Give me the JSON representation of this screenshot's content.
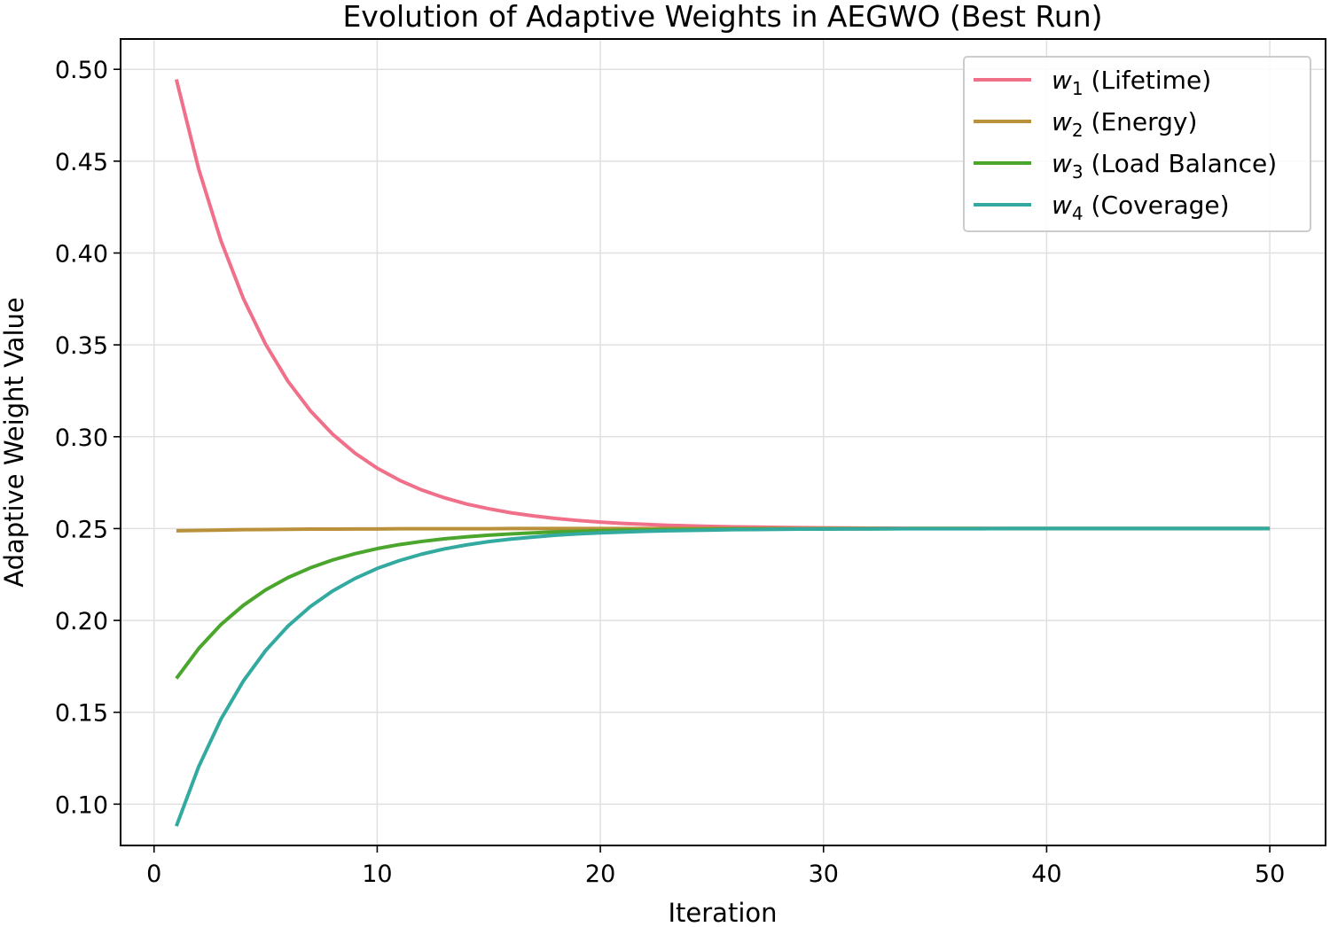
{
  "chart_data": {
    "type": "line",
    "title": "Evolution of Adaptive Weights in AEGWO (Best Run)",
    "xlabel": "Iteration",
    "ylabel": "Adaptive Weight Value",
    "xlim": [
      -1.5,
      52.5
    ],
    "ylim": [
      0.0775,
      0.5165
    ],
    "xticks": [
      0,
      10,
      20,
      30,
      40,
      50
    ],
    "xtick_labels": [
      "0",
      "10",
      "20",
      "30",
      "40",
      "50"
    ],
    "yticks": [
      0.1,
      0.15,
      0.2,
      0.25,
      0.3,
      0.35,
      0.4,
      0.45,
      0.5
    ],
    "ytick_labels": [
      "0.10",
      "0.15",
      "0.20",
      "0.25",
      "0.30",
      "0.35",
      "0.40",
      "0.45",
      "0.50"
    ],
    "grid": true,
    "legend_position": "top-right",
    "x_start": 1,
    "x_end": 50,
    "x_step": 1,
    "series": [
      {
        "name": "w1 (Lifetime)",
        "symbol": "w",
        "subscript": "1",
        "legend_label": "(Lifetime)",
        "color": "#f0708a",
        "values": [
          0.4945,
          0.4457,
          0.4066,
          0.3753,
          0.3503,
          0.3302,
          0.3142,
          0.3014,
          0.2911,
          0.2829,
          0.2763,
          0.271,
          0.2668,
          0.2634,
          0.2608,
          0.2586,
          0.2569,
          0.2555,
          0.2544,
          0.2535,
          0.2528,
          0.2523,
          0.2518,
          0.2515,
          0.2512,
          0.2509,
          0.2508,
          0.2506,
          0.2505,
          0.2504,
          0.2503,
          0.2502,
          0.2502,
          0.2501,
          0.2501,
          0.2501,
          0.2501,
          0.25,
          0.25,
          0.25,
          0.25,
          0.25,
          0.25,
          0.25,
          0.25,
          0.25,
          0.25,
          0.25,
          0.25,
          0.25
        ]
      },
      {
        "name": "w2 (Energy)",
        "symbol": "w",
        "subscript": "2",
        "legend_label": "(Energy)",
        "color": "#b9913a",
        "values": [
          0.2488,
          0.249,
          0.2492,
          0.2494,
          0.2495,
          0.2496,
          0.2497,
          0.2497,
          0.2498,
          0.2498,
          0.2499,
          0.2499,
          0.2499,
          0.2499,
          0.2499,
          0.25,
          0.25,
          0.25,
          0.25,
          0.25,
          0.25,
          0.25,
          0.25,
          0.25,
          0.25,
          0.25,
          0.25,
          0.25,
          0.25,
          0.25,
          0.25,
          0.25,
          0.25,
          0.25,
          0.25,
          0.25,
          0.25,
          0.25,
          0.25,
          0.25,
          0.25,
          0.25,
          0.25,
          0.25,
          0.25,
          0.25,
          0.25,
          0.25,
          0.25,
          0.25
        ]
      },
      {
        "name": "w3 (Load Balance)",
        "symbol": "w",
        "subscript": "3",
        "legend_label": "(Load Balance)",
        "color": "#4aa62d",
        "values": [
          0.1684,
          0.1847,
          0.1978,
          0.2082,
          0.2166,
          0.2233,
          0.2286,
          0.2329,
          0.2363,
          0.2391,
          0.2413,
          0.243,
          0.2444,
          0.2455,
          0.2464,
          0.2471,
          0.2477,
          0.2482,
          0.2485,
          0.2488,
          0.2491,
          0.2492,
          0.2494,
          0.2495,
          0.2496,
          0.2497,
          0.2497,
          0.2498,
          0.2498,
          0.2499,
          0.2499,
          0.2499,
          0.2499,
          0.25,
          0.25,
          0.25,
          0.25,
          0.25,
          0.25,
          0.25,
          0.25,
          0.25,
          0.25,
          0.25,
          0.25,
          0.25,
          0.25,
          0.25,
          0.25,
          0.25
        ]
      },
      {
        "name": "w4 (Coverage)",
        "symbol": "w",
        "subscript": "4",
        "legend_label": "(Coverage)",
        "color": "#33aaa0",
        "values": [
          0.088,
          0.1204,
          0.1463,
          0.167,
          0.1836,
          0.1969,
          0.2075,
          0.216,
          0.2228,
          0.2283,
          0.2326,
          0.2361,
          0.2389,
          0.2411,
          0.2429,
          0.2443,
          0.2454,
          0.2464,
          0.2471,
          0.2477,
          0.2481,
          0.2485,
          0.2488,
          0.249,
          0.2492,
          0.2494,
          0.2495,
          0.2496,
          0.2497,
          0.2497,
          0.2498,
          0.2498,
          0.2499,
          0.2499,
          0.2499,
          0.2499,
          0.2499,
          0.25,
          0.25,
          0.25,
          0.25,
          0.25,
          0.25,
          0.25,
          0.25,
          0.25,
          0.25,
          0.25,
          0.25,
          0.25
        ]
      }
    ]
  }
}
